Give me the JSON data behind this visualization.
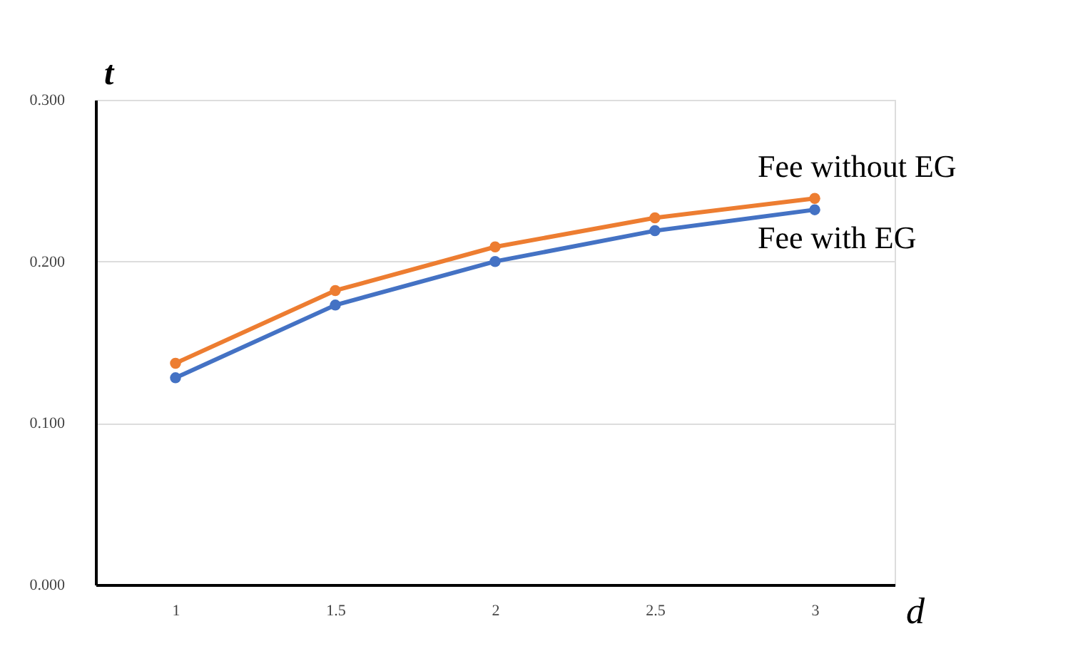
{
  "chart_data": {
    "type": "line",
    "xlabel": "d",
    "ylabel": "t",
    "categories": [
      "1",
      "1.5",
      "2",
      "2.5",
      "3"
    ],
    "series": [
      {
        "name": "Fee without EG",
        "color": "#ed7d31",
        "values": [
          0.137,
          0.182,
          0.209,
          0.227,
          0.239
        ]
      },
      {
        "name": "Fee with EG",
        "color": "#4472c4",
        "values": [
          0.128,
          0.173,
          0.2,
          0.219,
          0.232
        ]
      }
    ],
    "ylim": [
      0,
      0.3
    ],
    "yticks": [
      {
        "value": 0,
        "label": "0.000"
      },
      {
        "value": 0.1,
        "label": "0.100"
      },
      {
        "value": 0.2,
        "label": "0.200"
      },
      {
        "value": 0.3,
        "label": "0.300"
      }
    ],
    "grid": "y",
    "legend": false,
    "marker": "circle",
    "line_style": "solid"
  }
}
